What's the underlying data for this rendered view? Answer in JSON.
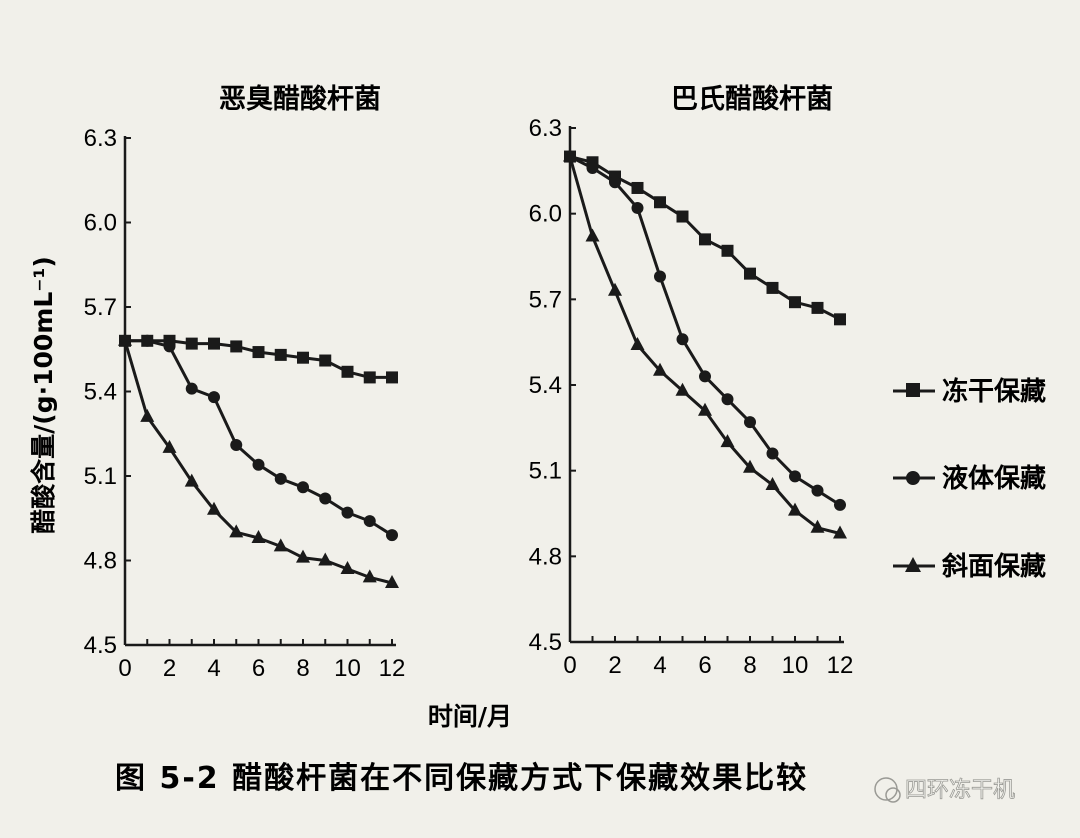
{
  "y_axis_label": "醋酸含量/(g·100mL⁻¹)",
  "x_axis_label": "时间/月",
  "caption": "图 5-2   醋酸杆菌在不同保藏方式下保藏效果比较",
  "watermark": "四环冻干机",
  "legend": [
    {
      "label": "冻干保藏",
      "marker": "square"
    },
    {
      "label": "液体保藏",
      "marker": "circle"
    },
    {
      "label": "斜面保藏",
      "marker": "triangle"
    }
  ],
  "chart_data": [
    {
      "type": "line",
      "title": "恶臭醋酸杆菌",
      "xlabel": "时间/月",
      "ylabel": "醋酸含量/(g·100mL⁻¹)",
      "xlim": [
        0,
        12
      ],
      "ylim": [
        4.5,
        6.3
      ],
      "xticks": [
        0,
        2,
        4,
        6,
        8,
        10,
        12
      ],
      "yticks": [
        "4.5",
        "4.8",
        "5.1",
        "5.4",
        "5.7",
        "6.0",
        "6.3"
      ],
      "x": [
        0,
        1,
        2,
        3,
        4,
        5,
        6,
        7,
        8,
        9,
        10,
        11,
        12
      ],
      "series": [
        {
          "name": "冻干保藏",
          "marker": "square",
          "values": [
            5.58,
            5.58,
            5.58,
            5.57,
            5.57,
            5.56,
            5.54,
            5.53,
            5.52,
            5.51,
            5.47,
            5.45,
            5.45
          ]
        },
        {
          "name": "液体保藏",
          "marker": "circle",
          "values": [
            5.58,
            5.58,
            5.56,
            5.41,
            5.38,
            5.21,
            5.14,
            5.09,
            5.06,
            5.02,
            4.97,
            4.94,
            4.89
          ]
        },
        {
          "name": "斜面保藏",
          "marker": "triangle",
          "values": [
            5.58,
            5.31,
            5.2,
            5.08,
            4.98,
            4.9,
            4.88,
            4.85,
            4.81,
            4.8,
            4.77,
            4.74,
            4.72
          ]
        }
      ]
    },
    {
      "type": "line",
      "title": "巴氏醋酸杆菌",
      "xlabel": "时间/月",
      "ylabel": "醋酸含量/(g·100mL⁻¹)",
      "xlim": [
        0,
        12
      ],
      "ylim": [
        4.5,
        6.3
      ],
      "xticks": [
        0,
        2,
        4,
        6,
        8,
        10,
        12
      ],
      "yticks": [
        "4.5",
        "4.8",
        "5.1",
        "5.4",
        "5.7",
        "6.0",
        "6.3"
      ],
      "x": [
        0,
        1,
        2,
        3,
        4,
        5,
        6,
        7,
        8,
        9,
        10,
        11,
        12
      ],
      "series": [
        {
          "name": "冻干保藏",
          "marker": "square",
          "values": [
            6.2,
            6.18,
            6.13,
            6.09,
            6.04,
            5.99,
            5.91,
            5.87,
            5.79,
            5.74,
            5.69,
            5.67,
            5.63
          ]
        },
        {
          "name": "液体保藏",
          "marker": "circle",
          "values": [
            6.2,
            6.16,
            6.11,
            6.02,
            5.78,
            5.56,
            5.43,
            5.35,
            5.27,
            5.16,
            5.08,
            5.03,
            4.98
          ]
        },
        {
          "name": "斜面保藏",
          "marker": "triangle",
          "values": [
            6.2,
            5.92,
            5.73,
            5.54,
            5.45,
            5.38,
            5.31,
            5.2,
            5.11,
            5.05,
            4.96,
            4.9,
            4.88
          ]
        }
      ]
    }
  ]
}
